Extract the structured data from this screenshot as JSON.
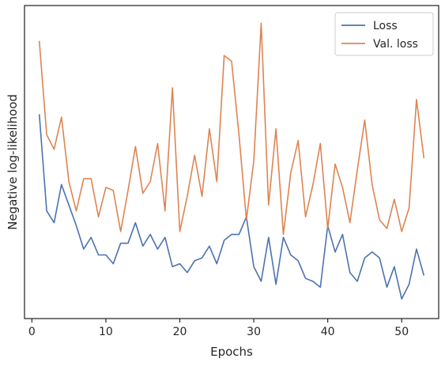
{
  "chart_data": {
    "type": "line",
    "xlabel": "Epochs",
    "ylabel": "Negative log-likelihood",
    "xlim": [
      -1,
      55
    ],
    "ylim": [
      0,
      100
    ],
    "xticks": [
      0,
      10,
      20,
      30,
      40,
      50
    ],
    "yticks_shown": false,
    "grid": false,
    "legend_position": "top-right",
    "series": [
      {
        "name": "Loss",
        "color": "#4c72b0",
        "x": [
          1,
          2,
          3,
          4,
          5,
          6,
          7,
          8,
          9,
          10,
          11,
          12,
          13,
          14,
          15,
          16,
          17,
          18,
          19,
          20,
          21,
          22,
          23,
          24,
          25,
          26,
          27,
          28,
          29,
          30,
          31,
          32,
          33,
          34,
          35,
          36,
          37,
          38,
          39,
          40,
          41,
          42,
          43,
          44,
          45,
          46,
          47,
          48,
          49,
          50,
          51,
          52,
          53
        ],
        "values": [
          67,
          34,
          30,
          43,
          36,
          29,
          21,
          25,
          19,
          19,
          16,
          23,
          23,
          30,
          22,
          26,
          21,
          25,
          15,
          16,
          13,
          17,
          18,
          22,
          16,
          24,
          26,
          26,
          32,
          15,
          10,
          25,
          9,
          25,
          19,
          17,
          11,
          10,
          8,
          29,
          20,
          26,
          13,
          10,
          18,
          20,
          18,
          8,
          15,
          4,
          9,
          21,
          12
        ]
      },
      {
        "name": "Val. loss",
        "color": "#dd8452",
        "x": [
          1,
          2,
          3,
          4,
          5,
          6,
          7,
          8,
          9,
          10,
          11,
          12,
          13,
          14,
          15,
          16,
          17,
          18,
          19,
          20,
          21,
          22,
          23,
          24,
          25,
          26,
          27,
          28,
          29,
          30,
          31,
          32,
          33,
          34,
          35,
          36,
          37,
          38,
          39,
          40,
          41,
          42,
          43,
          44,
          45,
          46,
          47,
          48,
          49,
          50,
          51,
          52,
          53
        ],
        "values": [
          92,
          60,
          55,
          66,
          44,
          34,
          45,
          45,
          32,
          42,
          41,
          27,
          41,
          56,
          40,
          44,
          57,
          34,
          76,
          27,
          39,
          53,
          39,
          62,
          44,
          87,
          85,
          60,
          31,
          51,
          98,
          36,
          62,
          26,
          47,
          58,
          32,
          43,
          57,
          28,
          50,
          42,
          30,
          48,
          65,
          43,
          31,
          28,
          38,
          27,
          35,
          72,
          52
        ]
      }
    ]
  }
}
